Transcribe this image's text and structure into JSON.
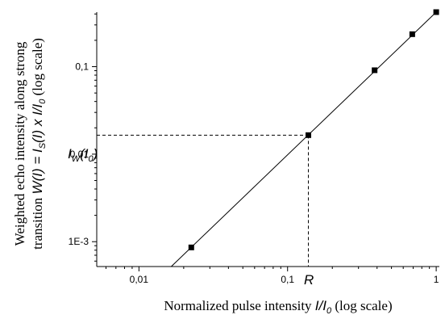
{
  "chart_data": {
    "type": "scatter",
    "x_scale": "log",
    "y_scale": "log",
    "xlim": [
      0.0052,
      1.05
    ],
    "ylim": [
      0.00052,
      0.42
    ],
    "x_ticks": [
      {
        "value": 0.01,
        "label": "0,01"
      },
      {
        "value": 0.1,
        "label": "0,1"
      },
      {
        "value": 1,
        "label": "1"
      }
    ],
    "y_ticks": [
      {
        "value": 0.001,
        "label": "1E-3"
      },
      {
        "value": 0.01,
        "label": "0,01"
      },
      {
        "value": 0.1,
        "label": "0,1"
      }
    ],
    "xlabel": {
      "pre": "Normalized pulse intensity ",
      "var": "I/I",
      "sub": "0",
      "post": " (log scale)"
    },
    "ylabel": {
      "line1": "Weighted echo intensity along strong",
      "line2_pre": "transition ",
      "line2_var1": "W(I) = I",
      "line2_sub1": "S",
      "line2_var2": "(I) x I/I",
      "line2_sub2": "0",
      "line2_post": " (log scale)"
    },
    "points": [
      {
        "x": 0.0225,
        "y": 0.00086
      },
      {
        "x": 0.138,
        "y": 0.0165
      },
      {
        "x": 0.385,
        "y": 0.091
      },
      {
        "x": 0.69,
        "y": 0.235
      },
      {
        "x": 1.0,
        "y": 0.42
      }
    ],
    "fit_line": {
      "x": [
        0.0165,
        1.0
      ],
      "y": [
        0.00052,
        0.42
      ]
    },
    "reference_x": 0.138,
    "reference_y": 0.0165,
    "annotations": {
      "R": "R",
      "Iw_main": "I",
      "Iw_sub": "W",
      "Iw_arg": "(I",
      "Iw_arg_sub": "0",
      "Iw_close": ")"
    }
  }
}
